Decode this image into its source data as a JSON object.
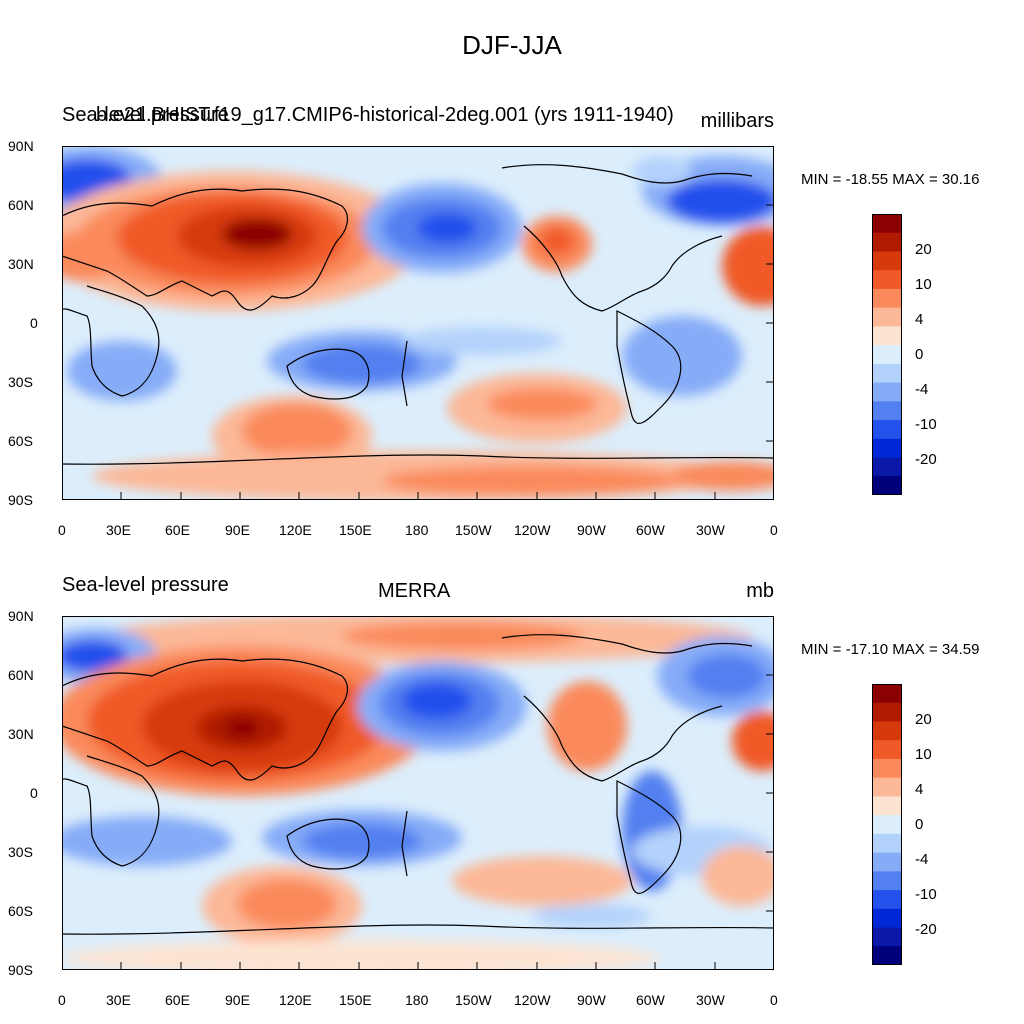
{
  "figure": {
    "title": "DJF-JJA"
  },
  "panels": [
    {
      "variable": "Sea-level pressure",
      "case_title": "b.e21.BHIST.f19_g17.CMIP6-historical-2deg.001 (yrs 1911-1940)",
      "units": "millibars",
      "min_max": "MIN = -18.55 MAX =  30.16"
    },
    {
      "variable": "Sea-level pressure",
      "case_title": "MERRA",
      "units": "mb",
      "min_max": "MIN = -17.10 MAX =  34.59"
    }
  ],
  "axes": {
    "lat_labels": [
      "90N",
      "60N",
      "30N",
      "0",
      "30S",
      "60S",
      "90S"
    ],
    "lon_labels": [
      "0",
      "30E",
      "60E",
      "90E",
      "120E",
      "150E",
      "180",
      "150W",
      "120W",
      "90W",
      "60W",
      "30W",
      "0"
    ]
  },
  "colorbar": {
    "labels": [
      "20",
      "10",
      "4",
      "0",
      "-4",
      "-10",
      "-20"
    ],
    "colors": [
      "#8b0000",
      "#b01a00",
      "#d63a0a",
      "#f05a28",
      "#fa8a5c",
      "#fcb897",
      "#fde4d2",
      "#dceefc",
      "#b3d2fb",
      "#86acf8",
      "#5280f0",
      "#2450ec",
      "#0028d6",
      "#0a18a8",
      "#00007a"
    ]
  },
  "style": {
    "land_outline": "#000000"
  }
}
